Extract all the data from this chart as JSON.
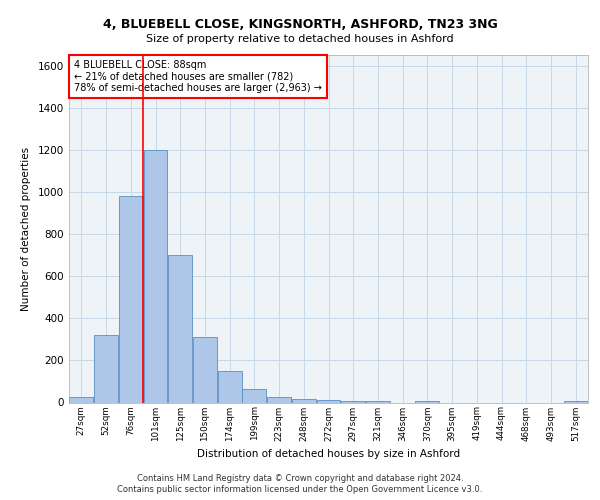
{
  "title_line1": "4, BLUEBELL CLOSE, KINGSNORTH, ASHFORD, TN23 3NG",
  "title_line2": "Size of property relative to detached houses in Ashford",
  "xlabel": "Distribution of detached houses by size in Ashford",
  "ylabel": "Number of detached properties",
  "footnote": "Contains HM Land Registry data © Crown copyright and database right 2024.\nContains public sector information licensed under the Open Government Licence v3.0.",
  "bar_labels": [
    "27sqm",
    "52sqm",
    "76sqm",
    "101sqm",
    "125sqm",
    "150sqm",
    "174sqm",
    "199sqm",
    "223sqm",
    "248sqm",
    "272sqm",
    "297sqm",
    "321sqm",
    "346sqm",
    "370sqm",
    "395sqm",
    "419sqm",
    "444sqm",
    "468sqm",
    "493sqm",
    "517sqm"
  ],
  "bar_values": [
    25,
    320,
    980,
    1200,
    700,
    310,
    150,
    65,
    25,
    15,
    10,
    5,
    5,
    0,
    5,
    0,
    0,
    0,
    0,
    0,
    5
  ],
  "bar_color": "#aec6e8",
  "bar_edge_color": "#5a8fc0",
  "grid_color": "#c8d8e8",
  "background_color": "#eef3f8",
  "annotation_text": "4 BLUEBELL CLOSE: 88sqm\n← 21% of detached houses are smaller (782)\n78% of semi-detached houses are larger (2,963) →",
  "annotation_box_color": "white",
  "annotation_box_edge_color": "red",
  "property_line_color": "red",
  "ylim": [
    0,
    1650
  ],
  "yticks": [
    0,
    200,
    400,
    600,
    800,
    1000,
    1200,
    1400,
    1600
  ]
}
